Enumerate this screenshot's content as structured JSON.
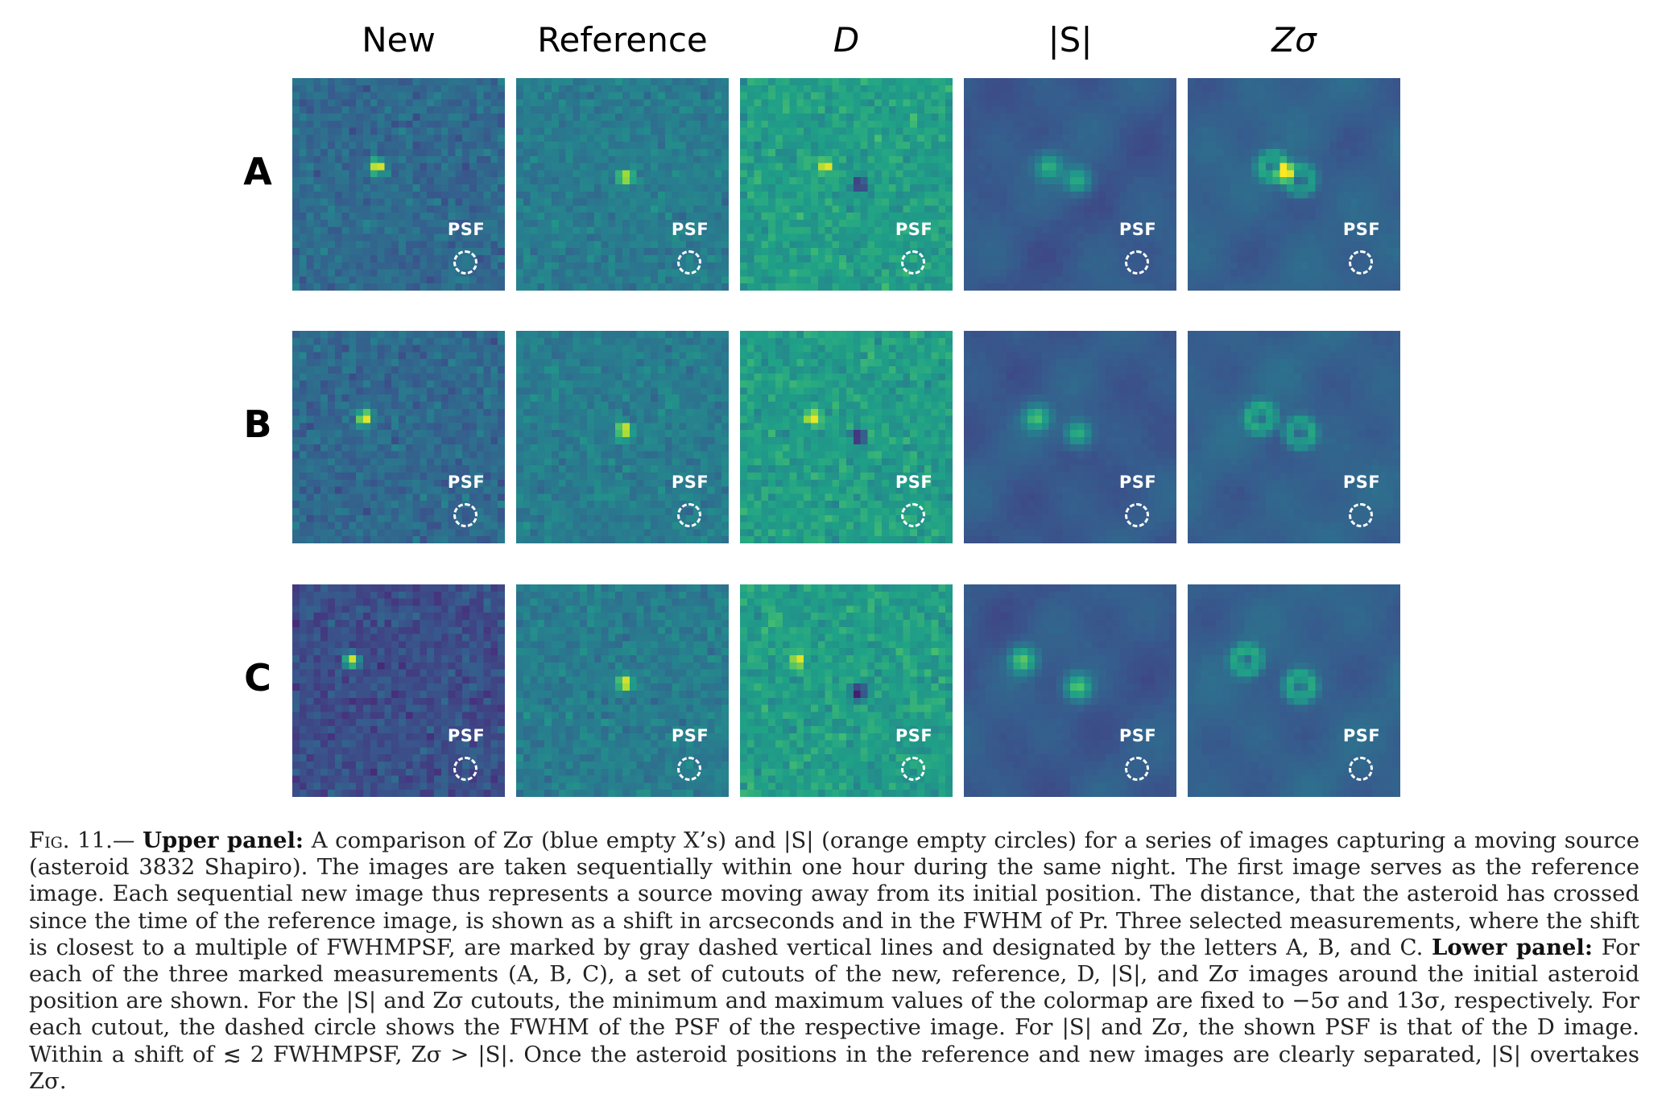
{
  "columns": [
    "New",
    "Reference",
    "D",
    "|S|",
    "Zσ"
  ],
  "rows": [
    "A",
    "B",
    "C"
  ],
  "psf_label": "PSF",
  "colormap": [
    "#440154",
    "#46327e",
    "#365c8d",
    "#277f8e",
    "#1fa187",
    "#4ac16d",
    "#a0da39",
    "#fde725"
  ],
  "caption": {
    "fig_label": "Fig. 11.—",
    "upper_title": "Upper panel:",
    "upper_text": "A comparison of Zσ (blue empty X’s) and |S| (orange empty circles) for a series of images capturing a moving source (asteroid 3832 Shapiro). The images are taken sequentially within one hour during the same night. The first image serves as the reference image. Each sequential new image thus represents a source moving away from its initial position. The distance, that the asteroid has crossed since the time of the reference image, is shown as a shift in arcseconds and in the FWHM of Pr. Three selected measurements, where the shift is closest to a multiple of FWHMPSF, are marked by gray dashed vertical lines and designated by the letters A, B, and C.",
    "lower_title": "Lower panel:",
    "lower_text": "For each of the three marked measurements (A, B, C), a set of cutouts of the new, reference, D, |S|, and Zσ images around the initial asteroid position are shown. For the |S| and Zσ cutouts, the minimum and maximum values of the colormap are fixed to −5σ and 13σ, respectively. For each cutout, the dashed circle shows the FWHM of the PSF of the respective image. For |S| and Zσ, the shown PSF is that of the D image. Within a shift of ≲ 2 FWHMPSF, Zσ > |S|. Once the asteroid positions in the reference and new images are clearly separated, |S| overtakes Zσ."
  }
}
